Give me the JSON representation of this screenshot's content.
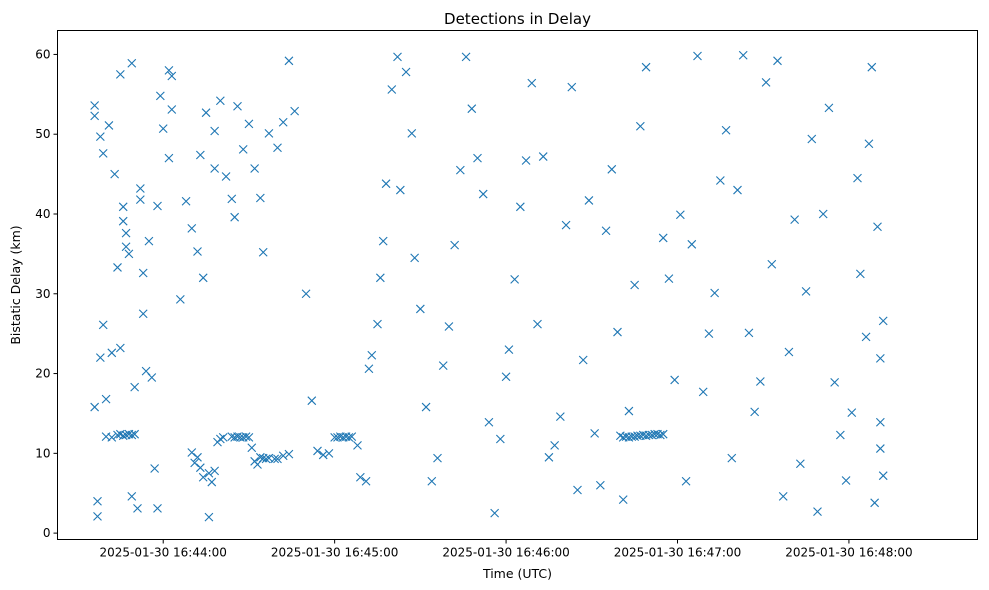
{
  "chart_data": {
    "type": "scatter",
    "title": "Detections in Delay",
    "xlabel": "Time (UTC)",
    "ylabel": "Bistatic Delay (km)",
    "x_ticks": [
      "2025-01-30 16:44:00",
      "2025-01-30 16:45:00",
      "2025-01-30 16:46:00",
      "2025-01-30 16:47:00",
      "2025-01-30 16:48:00"
    ],
    "y_ticks": [
      "0",
      "10",
      "20",
      "30",
      "40",
      "50",
      "60"
    ],
    "xlim": [
      "2025-01-30 16:43:23",
      "2025-01-30 16:48:45"
    ],
    "ylim": [
      -0.8,
      63
    ],
    "grid": false,
    "legend": "none",
    "marker": "x",
    "color": "#1f77b4",
    "series": [
      {
        "points": [
          [
            "2025-01-30 16:43:36",
            53.6
          ],
          [
            "2025-01-30 16:43:36",
            52.3
          ],
          [
            "2025-01-30 16:43:38",
            49.7
          ],
          [
            "2025-01-30 16:43:39",
            47.6
          ],
          [
            "2025-01-30 16:43:41",
            51.1
          ],
          [
            "2025-01-30 16:43:43",
            45.0
          ],
          [
            "2025-01-30 16:43:45",
            57.5
          ],
          [
            "2025-01-30 16:43:49",
            58.9
          ],
          [
            "2025-01-30 16:43:36",
            15.8
          ],
          [
            "2025-01-30 16:43:37",
            4.0
          ],
          [
            "2025-01-30 16:43:37",
            2.1
          ],
          [
            "2025-01-30 16:43:38",
            22.0
          ],
          [
            "2025-01-30 16:43:39",
            26.1
          ],
          [
            "2025-01-30 16:43:40",
            16.8
          ],
          [
            "2025-01-30 16:43:42",
            22.6
          ],
          [
            "2025-01-30 16:43:44",
            33.3
          ],
          [
            "2025-01-30 16:43:45",
            23.2
          ],
          [
            "2025-01-30 16:43:46",
            40.9
          ],
          [
            "2025-01-30 16:43:46",
            39.1
          ],
          [
            "2025-01-30 16:43:47",
            37.6
          ],
          [
            "2025-01-30 16:43:47",
            35.9
          ],
          [
            "2025-01-30 16:43:48",
            35.0
          ],
          [
            "2025-01-30 16:43:49",
            4.6
          ],
          [
            "2025-01-30 16:43:50",
            18.3
          ],
          [
            "2025-01-30 16:43:51",
            3.1
          ],
          [
            "2025-01-30 16:43:52",
            43.2
          ],
          [
            "2025-01-30 16:43:52",
            41.8
          ],
          [
            "2025-01-30 16:43:53",
            32.6
          ],
          [
            "2025-01-30 16:43:53",
            27.5
          ],
          [
            "2025-01-30 16:43:54",
            20.3
          ],
          [
            "2025-01-30 16:43:55",
            36.6
          ],
          [
            "2025-01-30 16:43:56",
            19.5
          ],
          [
            "2025-01-30 16:43:57",
            8.1
          ],
          [
            "2025-01-30 16:43:58",
            41.0
          ],
          [
            "2025-01-30 16:43:58",
            3.1
          ],
          [
            "2025-01-30 16:43:59",
            54.8
          ],
          [
            "2025-01-30 16:44:00",
            50.7
          ],
          [
            "2025-01-30 16:44:02",
            58.0
          ],
          [
            "2025-01-30 16:44:02",
            47.0
          ],
          [
            "2025-01-30 16:44:03",
            57.3
          ],
          [
            "2025-01-30 16:44:03",
            53.1
          ],
          [
            "2025-01-30 16:44:06",
            29.3
          ],
          [
            "2025-01-30 16:44:08",
            41.6
          ],
          [
            "2025-01-30 16:44:10",
            38.2
          ],
          [
            "2025-01-30 16:44:12",
            35.3
          ],
          [
            "2025-01-30 16:44:13",
            47.4
          ],
          [
            "2025-01-30 16:44:14",
            32.0
          ],
          [
            "2025-01-30 16:44:15",
            52.7
          ],
          [
            "2025-01-30 16:44:16",
            2.0
          ],
          [
            "2025-01-30 16:44:18",
            45.7
          ],
          [
            "2025-01-30 16:44:18",
            50.4
          ],
          [
            "2025-01-30 16:44:20",
            54.2
          ],
          [
            "2025-01-30 16:44:22",
            44.7
          ],
          [
            "2025-01-30 16:44:24",
            41.9
          ],
          [
            "2025-01-30 16:44:25",
            39.6
          ],
          [
            "2025-01-30 16:44:26",
            53.5
          ],
          [
            "2025-01-30 16:44:28",
            48.1
          ],
          [
            "2025-01-30 16:44:30",
            51.3
          ],
          [
            "2025-01-30 16:44:32",
            45.7
          ],
          [
            "2025-01-30 16:44:34",
            42.0
          ],
          [
            "2025-01-30 16:44:35",
            35.2
          ],
          [
            "2025-01-30 16:44:37",
            50.1
          ],
          [
            "2025-01-30 16:44:40",
            48.3
          ],
          [
            "2025-01-30 16:44:42",
            51.5
          ],
          [
            "2025-01-30 16:44:44",
            59.2
          ],
          [
            "2025-01-30 16:44:46",
            52.9
          ],
          [
            "2025-01-30 16:43:40",
            12.1
          ],
          [
            "2025-01-30 16:43:42",
            12.0
          ],
          [
            "2025-01-30 16:43:44",
            12.3
          ],
          [
            "2025-01-30 16:43:45",
            12.4
          ],
          [
            "2025-01-30 16:43:46",
            12.2
          ],
          [
            "2025-01-30 16:43:47",
            12.3
          ],
          [
            "2025-01-30 16:43:48",
            12.4
          ],
          [
            "2025-01-30 16:43:49",
            12.3
          ],
          [
            "2025-01-30 16:43:50",
            12.4
          ],
          [
            "2025-01-30 16:44:10",
            10.1
          ],
          [
            "2025-01-30 16:44:11",
            8.8
          ],
          [
            "2025-01-30 16:44:12",
            9.5
          ],
          [
            "2025-01-30 16:44:13",
            8.2
          ],
          [
            "2025-01-30 16:44:14",
            7.0
          ],
          [
            "2025-01-30 16:44:16",
            7.5
          ],
          [
            "2025-01-30 16:44:17",
            6.4
          ],
          [
            "2025-01-30 16:44:18",
            7.8
          ],
          [
            "2025-01-30 16:44:19",
            11.4
          ],
          [
            "2025-01-30 16:44:20",
            11.8
          ],
          [
            "2025-01-30 16:44:21",
            12.0
          ],
          [
            "2025-01-30 16:44:24",
            12.1
          ],
          [
            "2025-01-30 16:44:25",
            12.0
          ],
          [
            "2025-01-30 16:44:26",
            12.1
          ],
          [
            "2025-01-30 16:44:27",
            12.0
          ],
          [
            "2025-01-30 16:44:28",
            12.0
          ],
          [
            "2025-01-30 16:44:29",
            12.1
          ],
          [
            "2025-01-30 16:44:30",
            12.0
          ],
          [
            "2025-01-30 16:44:31",
            10.7
          ],
          [
            "2025-01-30 16:44:32",
            9.0
          ],
          [
            "2025-01-30 16:44:33",
            8.6
          ],
          [
            "2025-01-30 16:44:34",
            9.5
          ],
          [
            "2025-01-30 16:44:35",
            9.4
          ],
          [
            "2025-01-30 16:44:36",
            9.3
          ],
          [
            "2025-01-30 16:44:37",
            9.4
          ],
          [
            "2025-01-30 16:44:39",
            9.3
          ],
          [
            "2025-01-30 16:44:40",
            9.3
          ],
          [
            "2025-01-30 16:44:42",
            9.7
          ],
          [
            "2025-01-30 16:44:44",
            9.9
          ],
          [
            "2025-01-30 16:44:50",
            30.0
          ],
          [
            "2025-01-30 16:44:52",
            16.6
          ],
          [
            "2025-01-30 16:44:54",
            10.3
          ],
          [
            "2025-01-30 16:44:56",
            9.8
          ],
          [
            "2025-01-30 16:44:58",
            10.0
          ],
          [
            "2025-01-30 16:45:00",
            12.0
          ],
          [
            "2025-01-30 16:45:01",
            12.0
          ],
          [
            "2025-01-30 16:45:02",
            12.1
          ],
          [
            "2025-01-30 16:45:03",
            12.0
          ],
          [
            "2025-01-30 16:45:04",
            12.1
          ],
          [
            "2025-01-30 16:45:05",
            12.0
          ],
          [
            "2025-01-30 16:45:06",
            12.1
          ],
          [
            "2025-01-30 16:45:08",
            11.0
          ],
          [
            "2025-01-30 16:45:09",
            7.0
          ],
          [
            "2025-01-30 16:45:11",
            6.5
          ],
          [
            "2025-01-30 16:45:12",
            20.6
          ],
          [
            "2025-01-30 16:45:13",
            22.3
          ],
          [
            "2025-01-30 16:45:15",
            26.2
          ],
          [
            "2025-01-30 16:45:16",
            32.0
          ],
          [
            "2025-01-30 16:45:17",
            36.6
          ],
          [
            "2025-01-30 16:45:18",
            43.8
          ],
          [
            "2025-01-30 16:45:20",
            55.6
          ],
          [
            "2025-01-30 16:45:22",
            59.7
          ],
          [
            "2025-01-30 16:45:23",
            43.0
          ],
          [
            "2025-01-30 16:45:25",
            57.8
          ],
          [
            "2025-01-30 16:45:27",
            50.1
          ],
          [
            "2025-01-30 16:45:28",
            34.5
          ],
          [
            "2025-01-30 16:45:30",
            28.1
          ],
          [
            "2025-01-30 16:45:32",
            15.8
          ],
          [
            "2025-01-30 16:45:34",
            6.5
          ],
          [
            "2025-01-30 16:45:36",
            9.4
          ],
          [
            "2025-01-30 16:45:38",
            21.0
          ],
          [
            "2025-01-30 16:45:40",
            25.9
          ],
          [
            "2025-01-30 16:45:42",
            36.1
          ],
          [
            "2025-01-30 16:45:44",
            45.5
          ],
          [
            "2025-01-30 16:45:46",
            59.7
          ],
          [
            "2025-01-30 16:45:48",
            53.2
          ],
          [
            "2025-01-30 16:45:50",
            47.0
          ],
          [
            "2025-01-30 16:45:52",
            42.5
          ],
          [
            "2025-01-30 16:45:54",
            13.9
          ],
          [
            "2025-01-30 16:45:56",
            2.5
          ],
          [
            "2025-01-30 16:45:58",
            11.8
          ],
          [
            "2025-01-30 16:46:00",
            19.6
          ],
          [
            "2025-01-30 16:46:01",
            23.0
          ],
          [
            "2025-01-30 16:46:03",
            31.8
          ],
          [
            "2025-01-30 16:46:05",
            40.9
          ],
          [
            "2025-01-30 16:46:07",
            46.7
          ],
          [
            "2025-01-30 16:46:09",
            56.4
          ],
          [
            "2025-01-30 16:46:11",
            26.2
          ],
          [
            "2025-01-30 16:46:13",
            47.2
          ],
          [
            "2025-01-30 16:46:15",
            9.5
          ],
          [
            "2025-01-30 16:46:17",
            11.0
          ],
          [
            "2025-01-30 16:46:19",
            14.6
          ],
          [
            "2025-01-30 16:46:21",
            38.6
          ],
          [
            "2025-01-30 16:46:23",
            55.9
          ],
          [
            "2025-01-30 16:46:25",
            5.4
          ],
          [
            "2025-01-30 16:46:27",
            21.7
          ],
          [
            "2025-01-30 16:46:29",
            41.7
          ],
          [
            "2025-01-30 16:46:31",
            12.5
          ],
          [
            "2025-01-30 16:46:33",
            6.0
          ],
          [
            "2025-01-30 16:46:35",
            37.9
          ],
          [
            "2025-01-30 16:46:37",
            45.6
          ],
          [
            "2025-01-30 16:46:39",
            25.2
          ],
          [
            "2025-01-30 16:46:41",
            4.2
          ],
          [
            "2025-01-30 16:46:43",
            15.3
          ],
          [
            "2025-01-30 16:46:45",
            31.1
          ],
          [
            "2025-01-30 16:46:47",
            51.0
          ],
          [
            "2025-01-30 16:46:49",
            58.4
          ],
          [
            "2025-01-30 16:46:40",
            12.2
          ],
          [
            "2025-01-30 16:46:41",
            12.0
          ],
          [
            "2025-01-30 16:46:42",
            12.1
          ],
          [
            "2025-01-30 16:46:43",
            12.0
          ],
          [
            "2025-01-30 16:46:44",
            12.1
          ],
          [
            "2025-01-30 16:46:45",
            12.1
          ],
          [
            "2025-01-30 16:46:46",
            12.2
          ],
          [
            "2025-01-30 16:46:47",
            12.2
          ],
          [
            "2025-01-30 16:46:48",
            12.3
          ],
          [
            "2025-01-30 16:46:49",
            12.2
          ],
          [
            "2025-01-30 16:46:50",
            12.3
          ],
          [
            "2025-01-30 16:46:51",
            12.3
          ],
          [
            "2025-01-30 16:46:52",
            12.4
          ],
          [
            "2025-01-30 16:46:53",
            12.4
          ],
          [
            "2025-01-30 16:46:54",
            12.3
          ],
          [
            "2025-01-30 16:46:55",
            12.4
          ],
          [
            "2025-01-30 16:46:55",
            37.0
          ],
          [
            "2025-01-30 16:46:57",
            31.9
          ],
          [
            "2025-01-30 16:46:59",
            19.2
          ],
          [
            "2025-01-30 16:47:01",
            39.9
          ],
          [
            "2025-01-30 16:47:03",
            6.5
          ],
          [
            "2025-01-30 16:47:05",
            36.2
          ],
          [
            "2025-01-30 16:47:07",
            59.8
          ],
          [
            "2025-01-30 16:47:09",
            17.7
          ],
          [
            "2025-01-30 16:47:11",
            25.0
          ],
          [
            "2025-01-30 16:47:13",
            30.1
          ],
          [
            "2025-01-30 16:47:15",
            44.2
          ],
          [
            "2025-01-30 16:47:17",
            50.5
          ],
          [
            "2025-01-30 16:47:19",
            9.4
          ],
          [
            "2025-01-30 16:47:21",
            43.0
          ],
          [
            "2025-01-30 16:47:23",
            59.9
          ],
          [
            "2025-01-30 16:47:25",
            25.1
          ],
          [
            "2025-01-30 16:47:27",
            15.2
          ],
          [
            "2025-01-30 16:47:29",
            19.0
          ],
          [
            "2025-01-30 16:47:31",
            56.5
          ],
          [
            "2025-01-30 16:47:33",
            33.7
          ],
          [
            "2025-01-30 16:47:35",
            59.2
          ],
          [
            "2025-01-30 16:47:37",
            4.6
          ],
          [
            "2025-01-30 16:47:39",
            22.7
          ],
          [
            "2025-01-30 16:47:41",
            39.3
          ],
          [
            "2025-01-30 16:47:43",
            8.7
          ],
          [
            "2025-01-30 16:47:45",
            30.3
          ],
          [
            "2025-01-30 16:47:47",
            49.4
          ],
          [
            "2025-01-30 16:47:49",
            2.7
          ],
          [
            "2025-01-30 16:47:51",
            40.0
          ],
          [
            "2025-01-30 16:47:53",
            53.3
          ],
          [
            "2025-01-30 16:47:55",
            18.9
          ],
          [
            "2025-01-30 16:47:57",
            12.3
          ],
          [
            "2025-01-30 16:47:59",
            6.6
          ],
          [
            "2025-01-30 16:48:01",
            15.1
          ],
          [
            "2025-01-30 16:48:03",
            44.5
          ],
          [
            "2025-01-30 16:48:04",
            32.5
          ],
          [
            "2025-01-30 16:48:06",
            24.6
          ],
          [
            "2025-01-30 16:48:07",
            48.8
          ],
          [
            "2025-01-30 16:48:08",
            58.4
          ],
          [
            "2025-01-30 16:48:09",
            3.8
          ],
          [
            "2025-01-30 16:48:10",
            38.4
          ],
          [
            "2025-01-30 16:48:11",
            21.9
          ],
          [
            "2025-01-30 16:48:11",
            13.9
          ],
          [
            "2025-01-30 16:48:11",
            10.6
          ],
          [
            "2025-01-30 16:48:12",
            7.2
          ],
          [
            "2025-01-30 16:48:12",
            26.6
          ]
        ]
      }
    ]
  }
}
